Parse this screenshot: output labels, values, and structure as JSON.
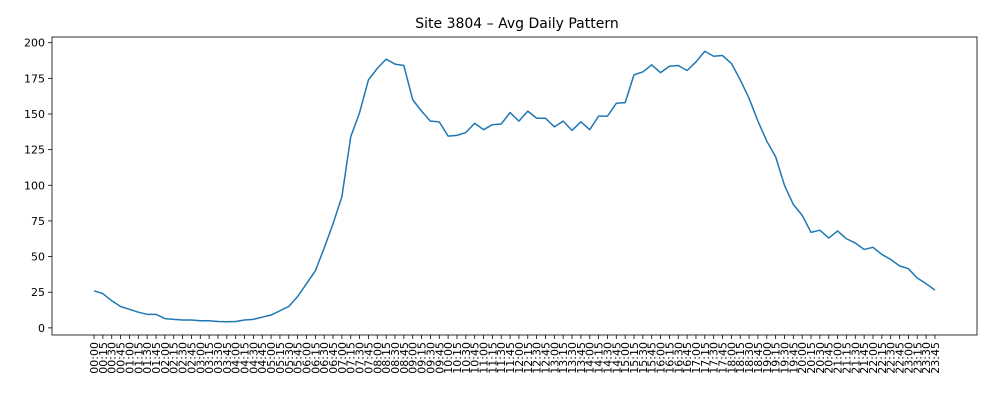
{
  "chart_data": {
    "type": "line",
    "title": "Site 3804 – Avg Daily Pattern",
    "categories": [
      "00:00",
      "00:15",
      "00:30",
      "00:45",
      "01:00",
      "01:15",
      "01:30",
      "01:45",
      "02:00",
      "02:15",
      "02:30",
      "02:45",
      "03:00",
      "03:15",
      "03:30",
      "03:45",
      "04:00",
      "04:15",
      "04:30",
      "04:45",
      "05:00",
      "05:15",
      "05:30",
      "05:45",
      "06:00",
      "06:15",
      "06:30",
      "06:45",
      "07:00",
      "07:15",
      "07:30",
      "07:45",
      "08:00",
      "08:15",
      "08:30",
      "08:45",
      "09:00",
      "09:15",
      "09:30",
      "09:45",
      "10:00",
      "10:15",
      "10:30",
      "10:45",
      "11:00",
      "11:15",
      "11:30",
      "11:45",
      "12:00",
      "12:15",
      "12:30",
      "12:45",
      "13:00",
      "13:15",
      "13:30",
      "13:45",
      "14:00",
      "14:15",
      "14:30",
      "14:45",
      "15:00",
      "15:15",
      "15:30",
      "15:45",
      "16:00",
      "16:15",
      "16:30",
      "16:45",
      "17:00",
      "17:15",
      "17:30",
      "17:45",
      "18:00",
      "18:15",
      "18:30",
      "18:45",
      "19:00",
      "19:15",
      "19:30",
      "19:45",
      "20:00",
      "20:15",
      "20:30",
      "20:45",
      "21:00",
      "21:15",
      "21:30",
      "21:45",
      "22:00",
      "22:15",
      "22:30",
      "22:45",
      "23:00",
      "23:15",
      "23:30",
      "23:45"
    ],
    "series": [
      {
        "color": "#1f77b4",
        "values": [
          26,
          24,
          19,
          15,
          13,
          11,
          9.5,
          9.5,
          6.5,
          6,
          5.5,
          5.5,
          5,
          5,
          4.5,
          4.3,
          4.5,
          5.5,
          6,
          7.5,
          9,
          12,
          15,
          22,
          31,
          40,
          56,
          73,
          92,
          134,
          151,
          174,
          182,
          188.5,
          185,
          184,
          160,
          152,
          145,
          144.5,
          134.5,
          135,
          137,
          143.5,
          139,
          142.5,
          143,
          151,
          145,
          152,
          147,
          147,
          141,
          145,
          138.5,
          144.5,
          139,
          148.5,
          148.5,
          157.5,
          158,
          177.5,
          179.5,
          184.5,
          179,
          183.5,
          184,
          180.5,
          186.5,
          194,
          190.5,
          191,
          185.5,
          174,
          161,
          145,
          131,
          120,
          100,
          86.5,
          79,
          67,
          68.5,
          63,
          68,
          62.5,
          59.5,
          55,
          56.5,
          51.5,
          48,
          43.5,
          41.5,
          35,
          31,
          26.5
        ]
      }
    ],
    "ylim": [
      -5,
      204
    ],
    "yticks": [
      0,
      25,
      50,
      75,
      100,
      125,
      150,
      175,
      200
    ]
  }
}
